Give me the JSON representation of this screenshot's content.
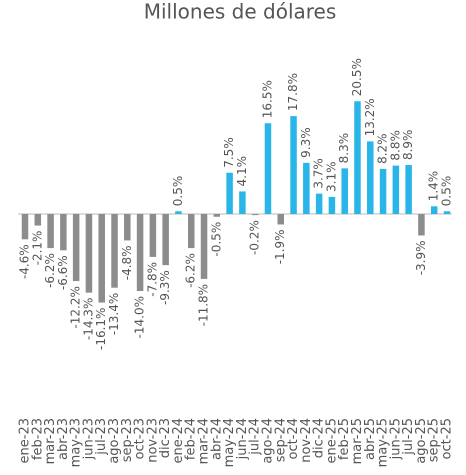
{
  "chart_data": {
    "type": "bar",
    "title": "Millones de dólares",
    "categories": [
      "ene-23",
      "feb-23",
      "mar-23",
      "abr-23",
      "may-23",
      "jun-23",
      "jul-23",
      "ago-23",
      "sep-23",
      "oct-23",
      "nov-23",
      "dic-23",
      "ene-24",
      "feb-24",
      "mar-24",
      "abr-24",
      "may-24",
      "jun-24",
      "jul-24",
      "ago-24",
      "sep-24",
      "oct-24",
      "nov-24",
      "dic-24",
      "ene-25",
      "feb-25",
      "mar-25",
      "abr-25",
      "may-25",
      "jun-25",
      "jul-25",
      "ago-25",
      "sep-25",
      "oct-25"
    ],
    "values": [
      -4.6,
      -2.1,
      -6.2,
      -6.6,
      -12.2,
      -14.3,
      -16.1,
      -13.4,
      -4.8,
      -14.0,
      -7.8,
      -9.3,
      0.5,
      -6.2,
      -11.8,
      -0.5,
      7.5,
      4.1,
      -0.2,
      16.5,
      -1.9,
      17.8,
      9.3,
      3.7,
      3.1,
      8.3,
      20.5,
      13.2,
      8.2,
      8.8,
      8.9,
      -3.9,
      1.4,
      0.5
    ],
    "value_labels": [
      "-4.6%",
      "-2.1%",
      "-6.2%",
      "-6.6%",
      "-12.2%",
      "-14.3%",
      "-16.1%",
      "-13.4%",
      "-4.8%",
      "-14.0%",
      "-7.8%",
      "-9.3%",
      "0.5%",
      "-6.2%",
      "-11.8%",
      "-0.5%",
      "7.5%",
      "4.1%",
      "-0.2%",
      "16.5%",
      "-1.9%",
      "17.8%",
      "9.3%",
      "3.7%",
      "3.1%",
      "8.3%",
      "20.5%",
      "13.2%",
      "8.2%",
      "8.8%",
      "8.9%",
      "-3.9%",
      "1.4%",
      "0.5%"
    ],
    "color_positive": "#29b5e8",
    "color_negative": "#8c8c8c"
  }
}
